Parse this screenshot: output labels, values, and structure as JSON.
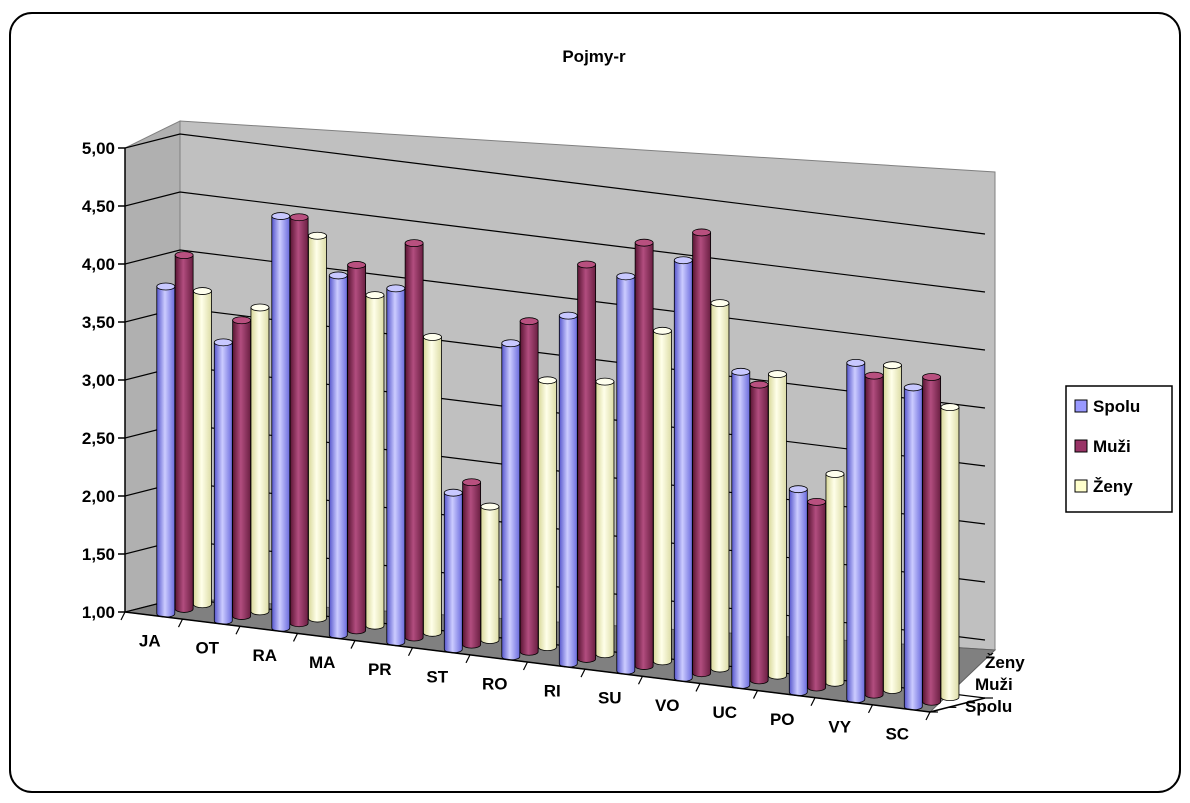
{
  "chart_data": {
    "type": "bar",
    "title": "Pojmy-r",
    "categories": [
      "JA",
      "OT",
      "RA",
      "MA",
      "PR",
      "ST",
      "RO",
      "RI",
      "SU",
      "VO",
      "UC",
      "PO",
      "VY",
      "SC"
    ],
    "series": [
      {
        "name": "Spolu",
        "color": "#9999ff",
        "values": [
          3.82,
          3.4,
          4.55,
          4.1,
          4.05,
          2.35,
          3.7,
          4.0,
          4.4,
          4.6,
          3.7,
          2.75,
          3.9,
          3.75
        ]
      },
      {
        "name": "Muži",
        "color": "#993366",
        "values": [
          4.05,
          3.55,
          4.5,
          4.15,
          4.4,
          2.4,
          3.85,
          4.4,
          4.65,
          4.8,
          3.55,
          2.6,
          3.75,
          3.8
        ]
      },
      {
        "name": "Ženy",
        "color": "#ffffcc",
        "values": [
          3.7,
          3.62,
          4.3,
          3.85,
          3.55,
          2.15,
          3.3,
          3.35,
          3.85,
          4.15,
          3.6,
          2.8,
          3.8,
          3.5
        ]
      }
    ],
    "ylim": [
      1.0,
      5.0
    ],
    "yticks": [
      "1,00",
      "1,50",
      "2,00",
      "2,50",
      "3,00",
      "3,50",
      "4,00",
      "4,50",
      "5,00"
    ],
    "depth_labels": [
      "Ženy",
      "Muži",
      "Spolu"
    ],
    "legend": {
      "position": "right",
      "entries": [
        "Spolu",
        "Muži",
        "Ženy"
      ]
    },
    "grid": true
  }
}
